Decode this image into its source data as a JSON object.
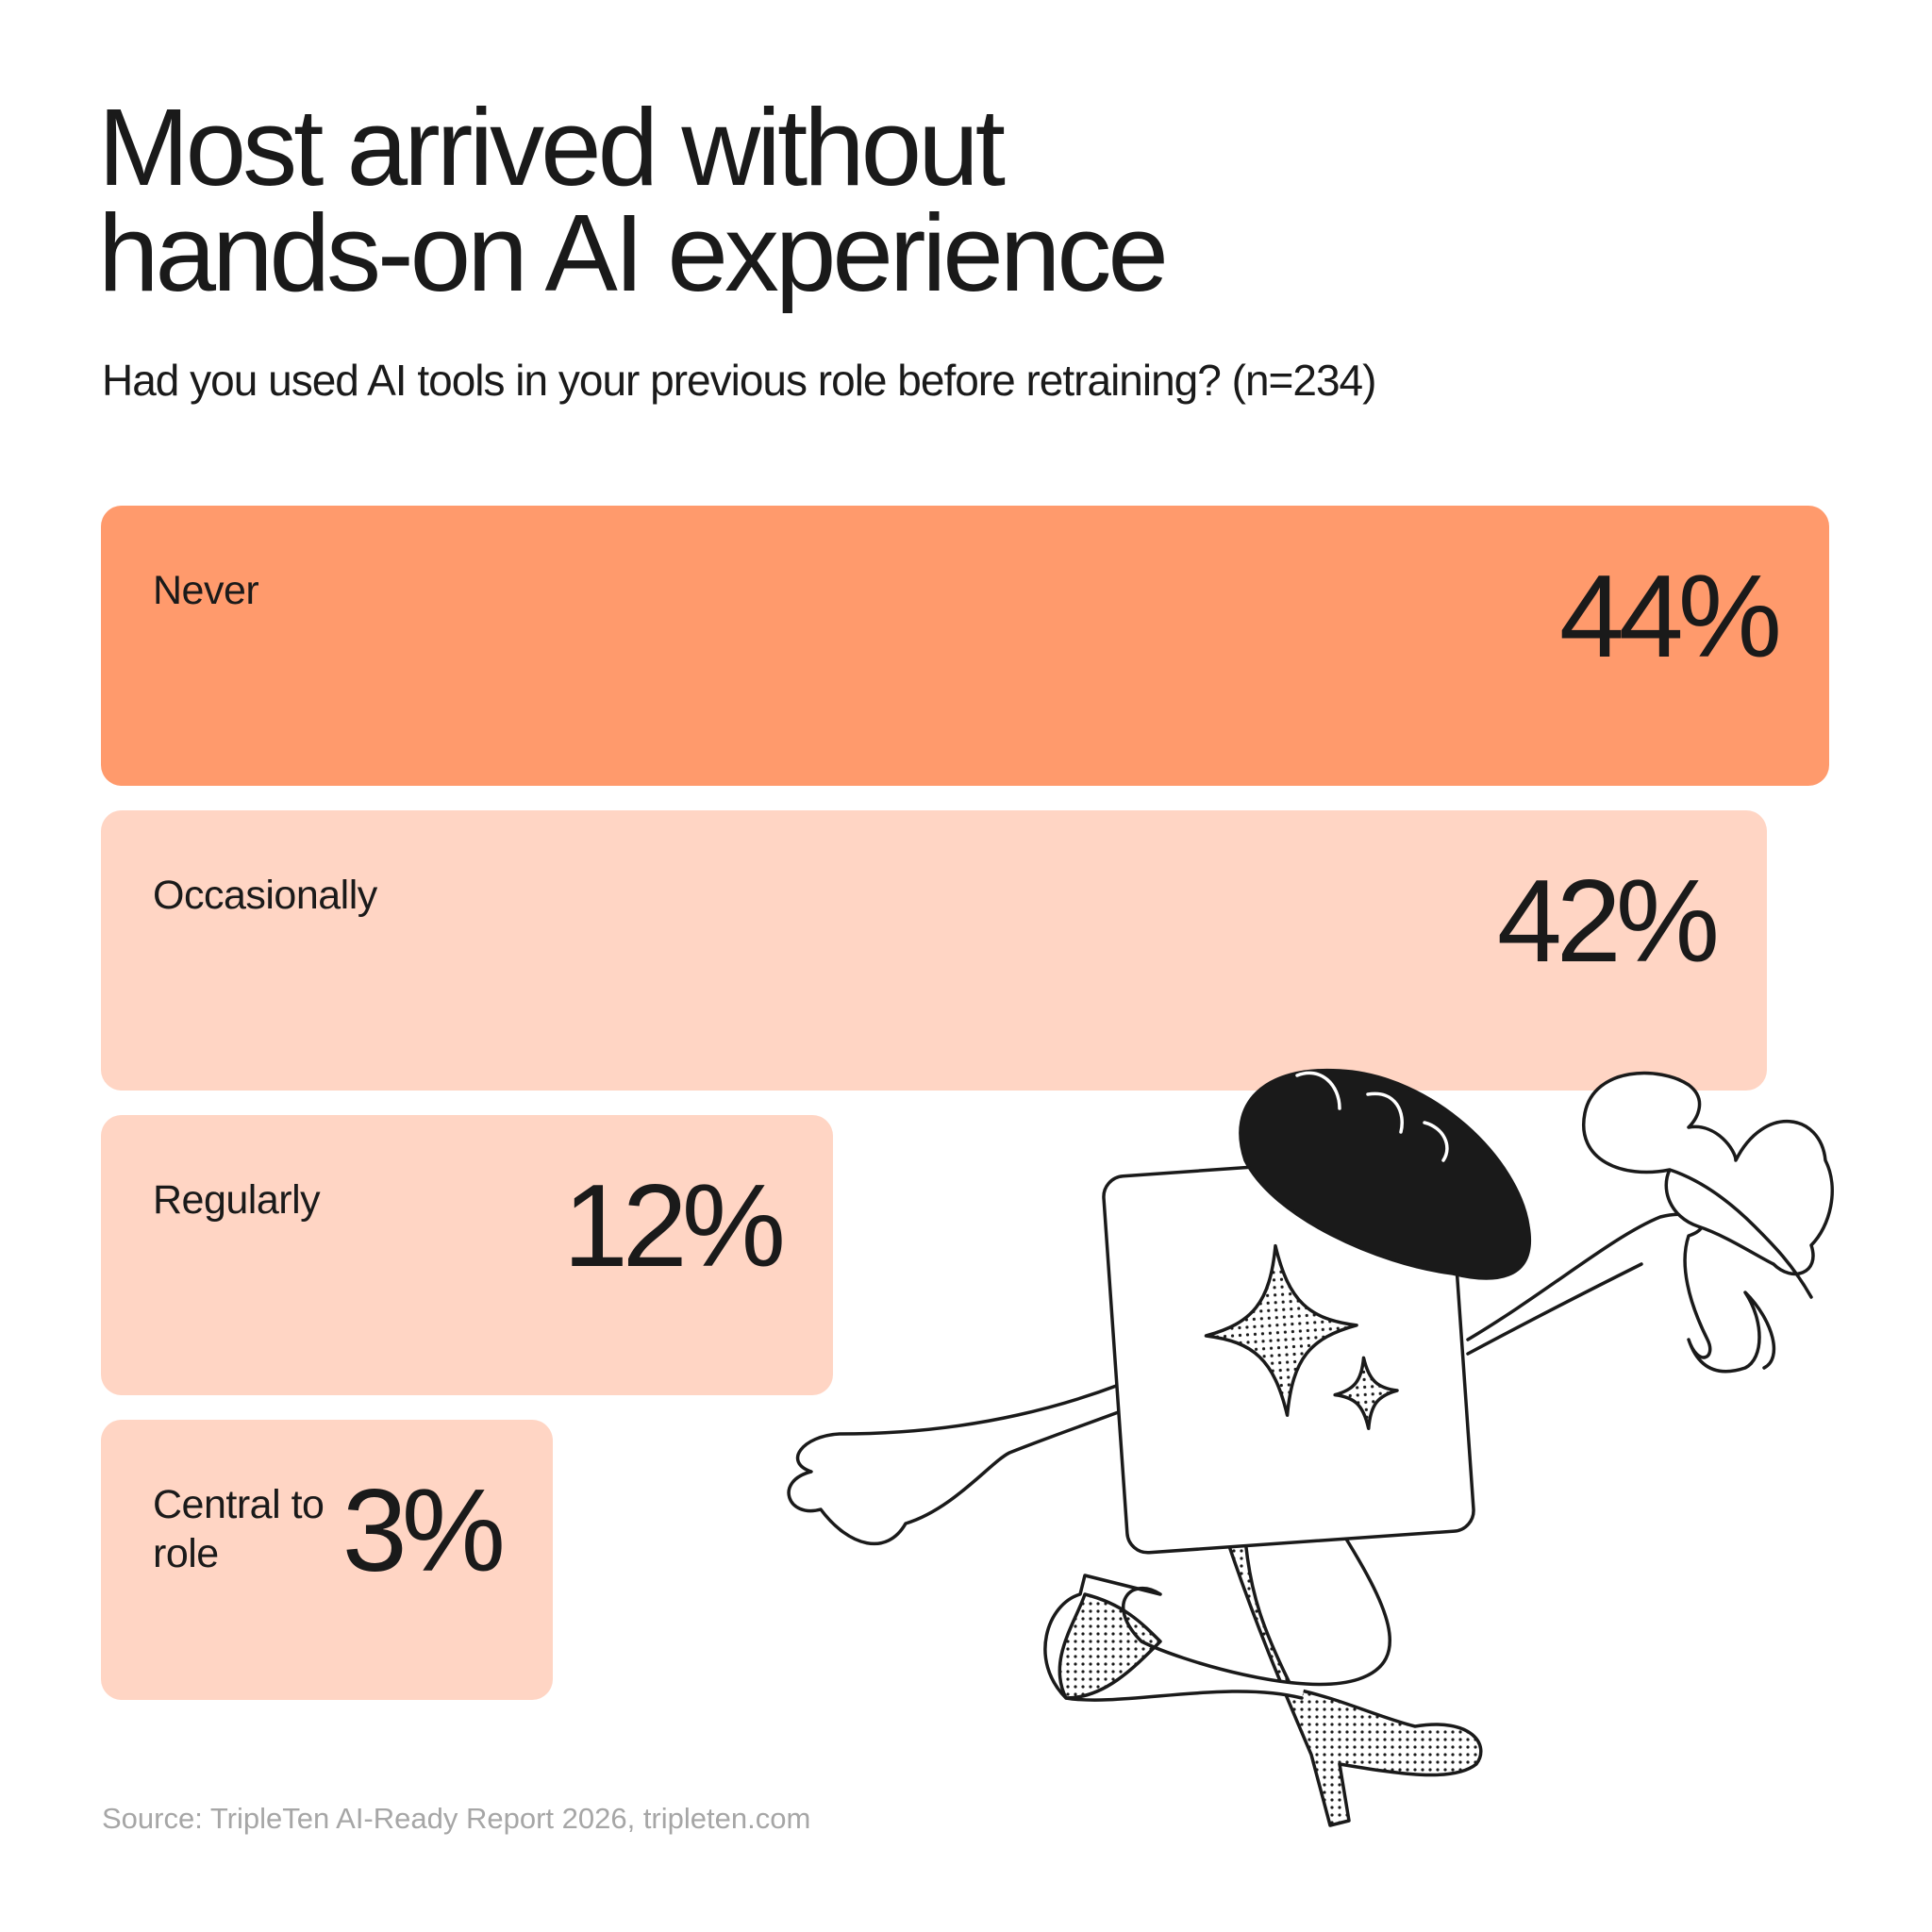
{
  "chart_data": {
    "type": "bar",
    "orientation": "horizontal",
    "title": "Most arrived without hands-on AI experience",
    "subtitle": "Had you used AI tools in your previous role before retraining? (n=234)",
    "categories": [
      "Never",
      "Occasionally",
      "Regularly",
      "Central to role"
    ],
    "values": [
      44,
      42,
      12,
      3
    ],
    "value_labels": [
      "44%",
      "42%",
      "12%",
      "3%"
    ],
    "colors": [
      "#ff9a6c",
      "#ffd5c4",
      "#ffd5c4",
      "#ffd5c4"
    ],
    "source": "Source: TripleTen AI-Ready Report 2026, tripleten.com"
  }
}
